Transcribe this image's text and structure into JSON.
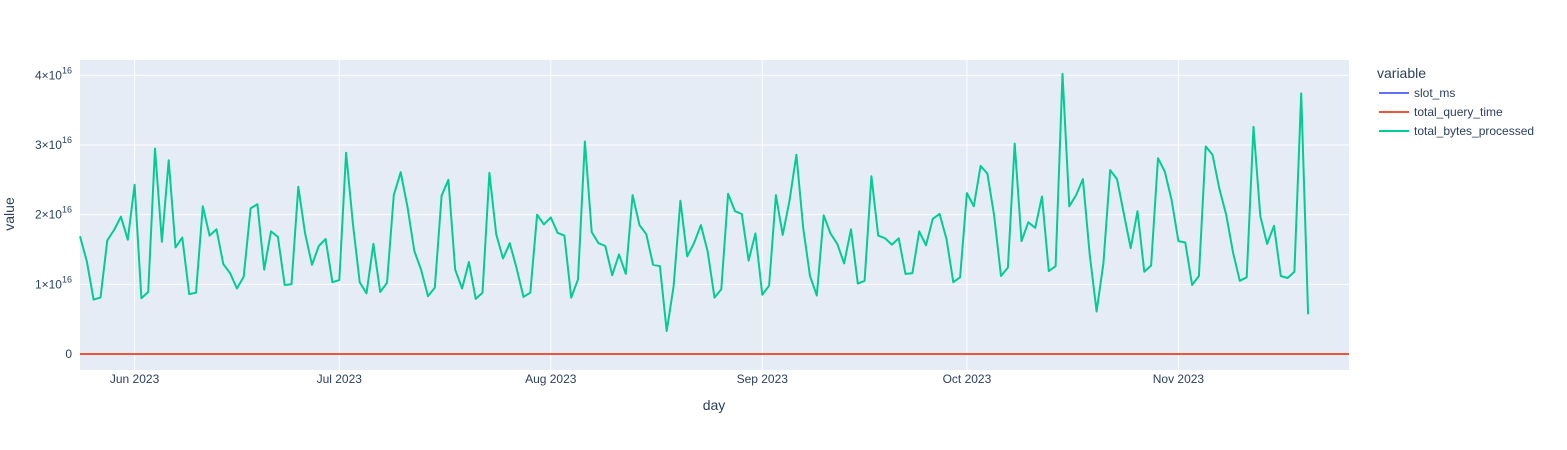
{
  "chart_data": {
    "type": "line",
    "xlabel": "day",
    "ylabel": "value",
    "x_ticks": [
      "Jun 2023",
      "Jul 2023",
      "Aug 2023",
      "Sep 2023",
      "Oct 2023",
      "Nov 2023"
    ],
    "y_ticks": [
      "0",
      "1×10",
      "2×10",
      "3×10",
      "4×10"
    ],
    "y_tick_exponent": "16",
    "x_range": [
      "2023-05-24",
      "2023-11-26"
    ],
    "y_range": [
      -2300000000000000.0,
      4.22e+16
    ],
    "grid": true,
    "legend": {
      "title": "variable",
      "placement": "right"
    },
    "colors": {
      "slot_ms": "#636efa",
      "total_query_time": "#EF553B",
      "total_bytes_processed": "#00cc96",
      "plot_bg": "#E5ECF6"
    },
    "series": [
      {
        "name": "slot_ms",
        "constant": 0
      },
      {
        "name": "total_query_time",
        "constant": 0
      },
      {
        "name": "total_bytes_processed",
        "start": "2023-05-24",
        "values": [
          1.69e+16,
          1.33e+16,
          7800000000000000.0,
          8100000000000000.0,
          1.63e+16,
          1.78e+16,
          1.97e+16,
          1.64e+16,
          2.43e+16,
          8000000000000000.0,
          8900000000000000.0,
          2.95e+16,
          1.61e+16,
          2.78e+16,
          1.53e+16,
          1.67e+16,
          8600000000000000.0,
          8800000000000000.0,
          2.12e+16,
          1.7e+16,
          1.79e+16,
          1.29e+16,
          1.16e+16,
          9400000000000000.0,
          1.11e+16,
          2.09e+16,
          2.15e+16,
          1.21e+16,
          1.76e+16,
          1.68e+16,
          9900000000000000.0,
          1e+16,
          2.4e+16,
          1.73e+16,
          1.28e+16,
          1.55e+16,
          1.65e+16,
          1.03e+16,
          1.06e+16,
          2.89e+16,
          1.87e+16,
          1.03e+16,
          8700000000000000.0,
          1.58e+16,
          8900000000000000.0,
          1.02e+16,
          2.28e+16,
          2.61e+16,
          2.11e+16,
          1.48e+16,
          1.21e+16,
          8300000000000000.0,
          9500000000000000.0,
          2.27e+16,
          2.5e+16,
          1.21e+16,
          9400000000000000.0,
          1.32e+16,
          7900000000000000.0,
          8800000000000000.0,
          2.6e+16,
          1.72e+16,
          1.37e+16,
          1.59e+16,
          1.23e+16,
          8200000000000000.0,
          8800000000000000.0,
          2e+16,
          1.86e+16,
          1.96e+16,
          1.74e+16,
          1.7e+16,
          8100000000000000.0,
          1.07e+16,
          3.05e+16,
          1.75e+16,
          1.59e+16,
          1.55e+16,
          1.13e+16,
          1.43e+16,
          1.15e+16,
          2.28e+16,
          1.85e+16,
          1.72e+16,
          1.28e+16,
          1.26e+16,
          3300000000000000.0,
          9700000000000000.0,
          2.2e+16,
          1.4e+16,
          1.59e+16,
          1.85e+16,
          1.47e+16,
          8100000000000000.0,
          9300000000000000.0,
          2.3e+16,
          2.05e+16,
          2.01e+16,
          1.34e+16,
          1.73e+16,
          8500000000000000.0,
          9800000000000000.0,
          2.28e+16,
          1.71e+16,
          2.2e+16,
          2.86e+16,
          1.81e+16,
          1.12e+16,
          8400000000000000.0,
          1.99e+16,
          1.73e+16,
          1.58e+16,
          1.3e+16,
          1.79e+16,
          1.01e+16,
          1.05e+16,
          2.55e+16,
          1.7e+16,
          1.66e+16,
          1.57e+16,
          1.66e+16,
          1.15e+16,
          1.16e+16,
          1.76e+16,
          1.56e+16,
          1.94e+16,
          2.01e+16,
          1.65e+16,
          1.03e+16,
          1.1e+16,
          2.31e+16,
          2.12e+16,
          2.7e+16,
          2.59e+16,
          1.98e+16,
          1.12e+16,
          1.24e+16,
          3.02e+16,
          1.62e+16,
          1.89e+16,
          1.81e+16,
          2.26e+16,
          1.19e+16,
          1.26e+16,
          4.02e+16,
          2.12e+16,
          2.28e+16,
          2.51e+16,
          1.43e+16,
          6100000000000000.0,
          1.3e+16,
          2.64e+16,
          2.51e+16,
          2.01e+16,
          1.52e+16,
          2.05e+16,
          1.18e+16,
          1.27e+16,
          2.81e+16,
          2.62e+16,
          2.21e+16,
          1.62e+16,
          1.6e+16,
          9900000000000000.0,
          1.12e+16,
          2.98e+16,
          2.86e+16,
          2.37e+16,
          2e+16,
          1.46e+16,
          1.05e+16,
          1.1e+16,
          3.26e+16,
          1.98e+16,
          1.58e+16,
          1.84e+16,
          1.12e+16,
          1.09e+16,
          1.18e+16,
          3.74e+16,
          5700000000000000.0
        ]
      }
    ]
  }
}
